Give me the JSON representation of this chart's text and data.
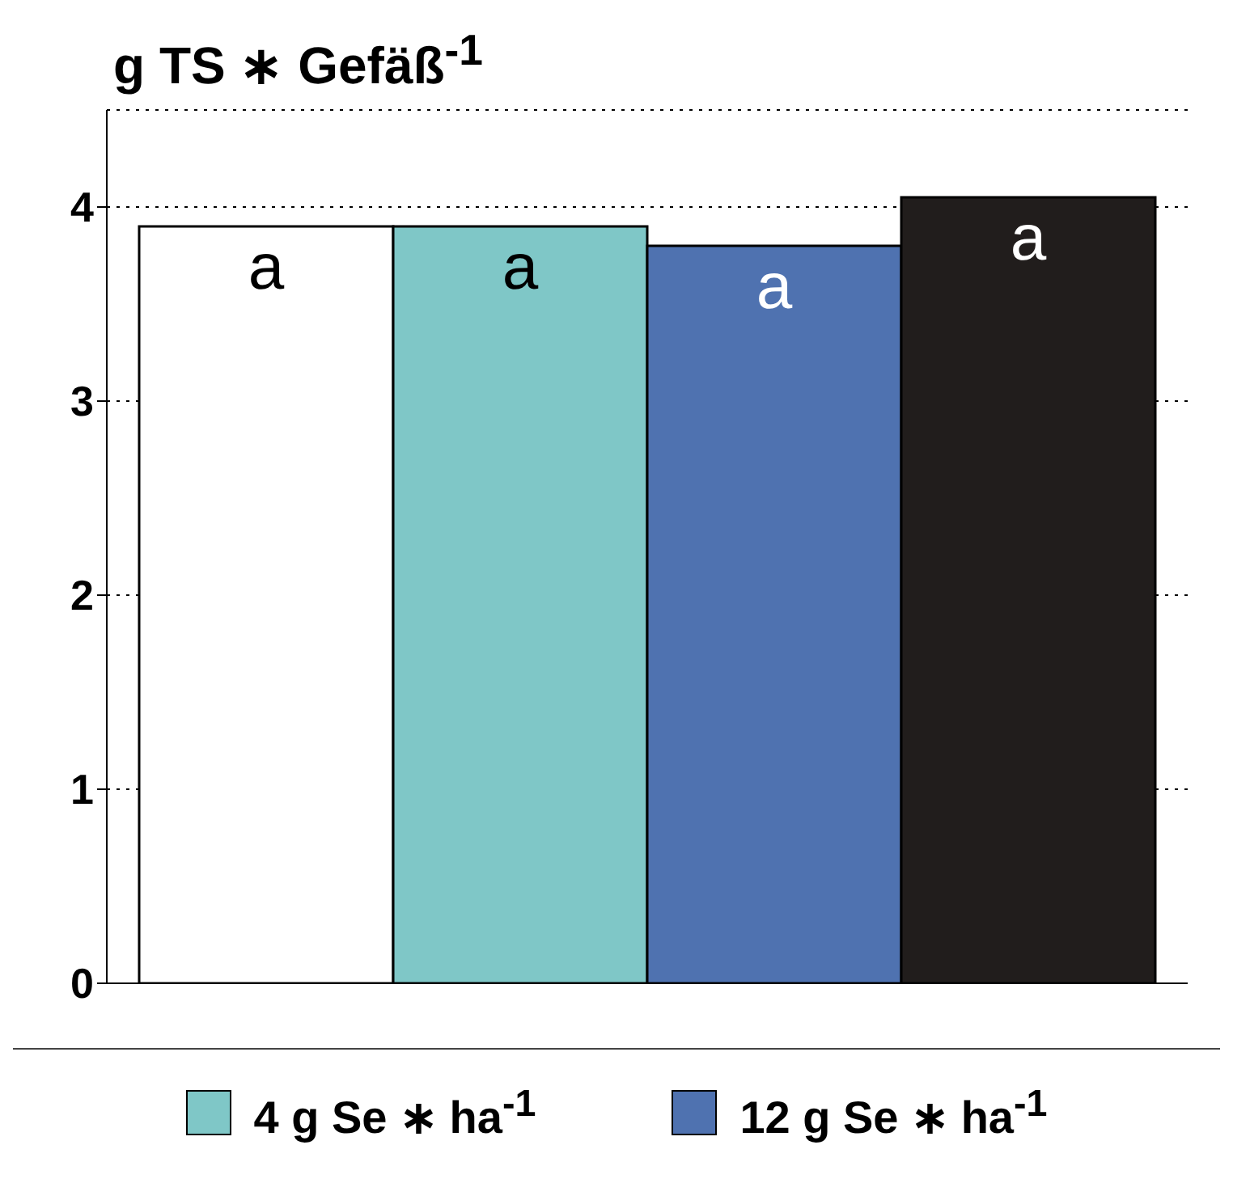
{
  "chart_data": {
    "type": "bar",
    "ylabel": "g TS ∗ Gefäß$^{-1}$",
    "categories": [
      null
    ],
    "series": [
      {
        "color": "#ffffff",
        "values": [
          3.9
        ]
      },
      {
        "name": "4 g Se ∗ ha$^{-1}$",
        "color": "#7fc7c7",
        "values": [
          3.9
        ]
      },
      {
        "name": "12 g Se ∗ ha$^{-1}$",
        "color": "#4f72b0",
        "values": [
          3.8
        ]
      },
      {
        "color": "#211d1c",
        "values": [
          4.05
        ]
      }
    ],
    "ylim": [
      0,
      4.5
    ],
    "yticks": [
      0,
      1,
      2,
      3,
      4
    ],
    "grid": "y",
    "legend": "bottom",
    "annotations": [
      "a",
      "a",
      "a",
      "a"
    ]
  }
}
